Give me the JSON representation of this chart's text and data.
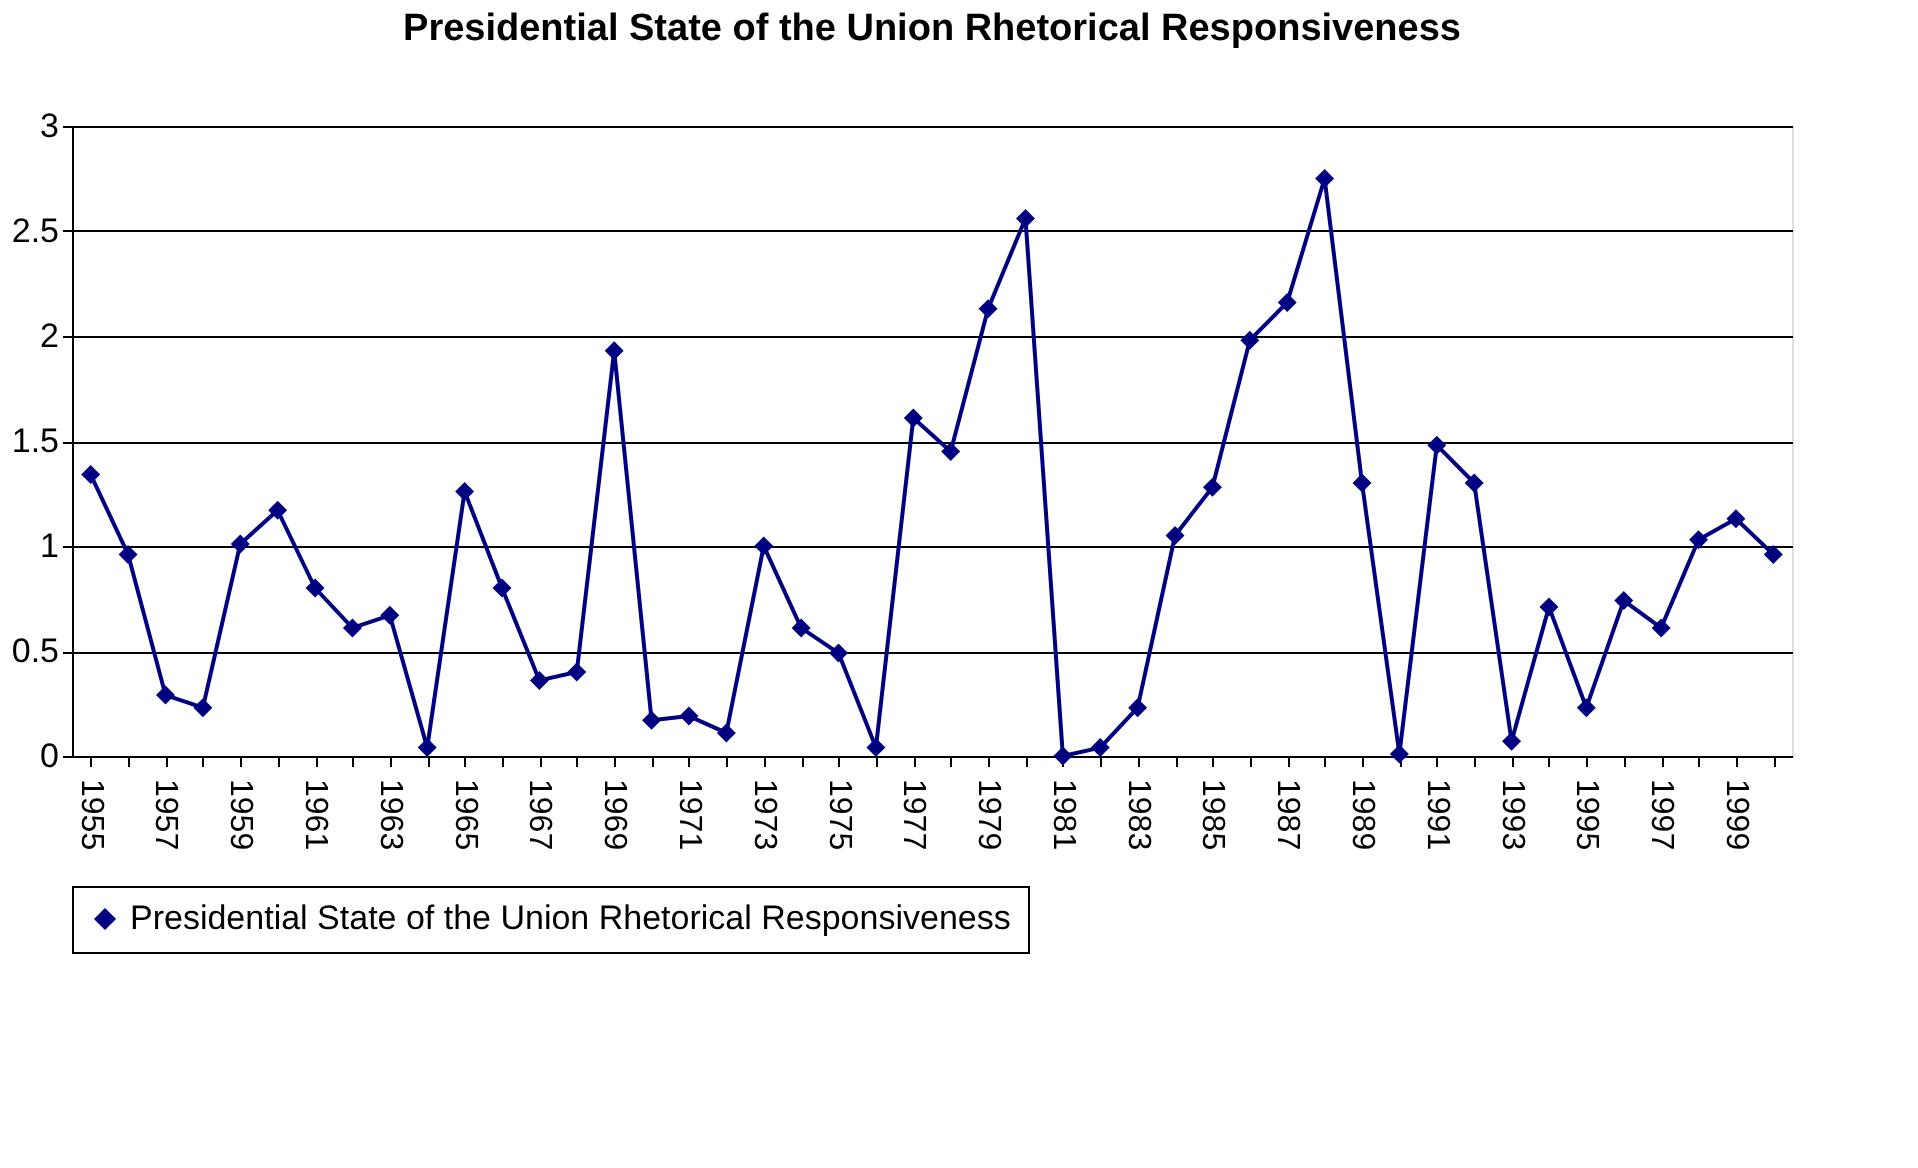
{
  "chart_data": {
    "type": "line",
    "title": "Presidential State of the Union Rhetorical Responsiveness",
    "categories": [
      "1955",
      null,
      "1957",
      null,
      "1959",
      null,
      "1961",
      null,
      "1963",
      null,
      "1965",
      null,
      "1967",
      null,
      "1969",
      null,
      "1971",
      null,
      "1973",
      null,
      "1975",
      null,
      "1977",
      null,
      "1979",
      null,
      "1981",
      null,
      "1983",
      null,
      "1985",
      null,
      "1987",
      null,
      "1989",
      null,
      "1991",
      null,
      "1993",
      null,
      "1995",
      null,
      "1997",
      null,
      "1999",
      null
    ],
    "series": [
      {
        "name": "Presidential State of the Union Rhetorical Responsiveness",
        "color": "#000080",
        "values": [
          1.34,
          0.96,
          0.29,
          0.23,
          1.01,
          1.17,
          0.8,
          0.61,
          0.67,
          0.04,
          1.26,
          0.8,
          0.36,
          0.4,
          1.93,
          0.17,
          0.19,
          0.11,
          1.0,
          0.61,
          0.49,
          0.04,
          1.61,
          1.45,
          2.13,
          2.56,
          0.0,
          0.04,
          0.23,
          1.05,
          1.28,
          1.98,
          2.16,
          2.75,
          1.3,
          0.01,
          1.48,
          1.3,
          0.07,
          0.71,
          0.23,
          0.74,
          0.61,
          1.03,
          1.13,
          0.96
        ]
      }
    ],
    "ylim": [
      0,
      3
    ],
    "yticks": [
      0,
      0.5,
      1,
      1.5,
      2,
      2.5,
      3
    ],
    "grid": "y",
    "legend": "bottom",
    "marker": "diamond",
    "line_style": "solid"
  }
}
